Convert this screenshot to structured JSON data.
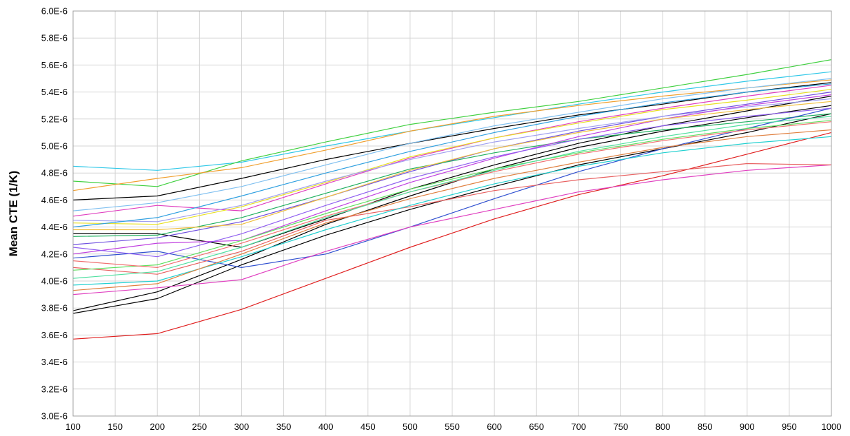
{
  "chart_data": {
    "type": "line",
    "title": "",
    "xlabel": "",
    "ylabel": "Mean CTE (1/K)",
    "xlim": [
      100,
      1000
    ],
    "ylim": [
      3e-06,
      6e-06
    ],
    "grid": true,
    "legend": "none",
    "x_ticks": [
      "100",
      "150",
      "200",
      "250",
      "300",
      "350",
      "400",
      "450",
      "500",
      "550",
      "600",
      "650",
      "700",
      "750",
      "800",
      "850",
      "900",
      "950",
      "1000"
    ],
    "y_ticks": [
      "3.0E-6",
      "3.2E-6",
      "3.4E-6",
      "3.6E-6",
      "3.8E-6",
      "4.0E-6",
      "4.2E-6",
      "4.4E-6",
      "4.6E-6",
      "4.8E-6",
      "5.0E-6",
      "5.2E-6",
      "5.4E-6",
      "5.6E-6",
      "5.8E-6",
      "6.0E-6"
    ],
    "x": [
      100,
      200,
      300,
      400,
      500,
      600,
      700,
      800,
      900,
      1000
    ],
    "series": [
      {
        "color": "#e02020",
        "values": [
          3.57e-06,
          3.61e-06,
          3.79e-06,
          4.02e-06,
          4.25e-06,
          4.46e-06,
          4.64e-06,
          4.78e-06,
          4.94e-06,
          5.1e-06
        ]
      },
      {
        "color": "#000000",
        "values": [
          3.76e-06,
          3.87e-06,
          4.12e-06,
          4.34e-06,
          4.53e-06,
          4.7e-06,
          4.86e-06,
          4.98e-06,
          5.1e-06,
          5.24e-06
        ]
      },
      {
        "color": "#000000",
        "values": [
          3.78e-06,
          3.92e-06,
          4.16e-06,
          4.42e-06,
          4.63e-06,
          4.83e-06,
          4.99e-06,
          5.11e-06,
          5.21e-06,
          5.3e-06
        ]
      },
      {
        "color": "#000000",
        "values": [
          4.6e-06,
          4.63e-06,
          4.76e-06,
          4.9e-06,
          5.02e-06,
          5.13e-06,
          5.23e-06,
          5.31e-06,
          5.4e-06,
          5.47e-06
        ]
      },
      {
        "color": "#000000",
        "values": [
          4.35e-06,
          4.35e-06,
          4.25e-06,
          4.46e-06,
          4.68e-06,
          4.86e-06,
          5.02e-06,
          5.15e-06,
          5.26e-06,
          5.37e-06
        ]
      },
      {
        "color": "#30c8e8",
        "values": [
          4.85e-06,
          4.82e-06,
          4.88e-06,
          5e-06,
          5.11e-06,
          5.21e-06,
          5.31e-06,
          5.4e-06,
          5.48e-06,
          5.55e-06
        ]
      },
      {
        "color": "#40d040",
        "values": [
          4.74e-06,
          4.7e-06,
          4.89e-06,
          5.03e-06,
          5.16e-06,
          5.25e-06,
          5.33e-06,
          5.43e-06,
          5.53e-06,
          5.64e-06
        ]
      },
      {
        "color": "#f0a030",
        "values": [
          4.67e-06,
          4.76e-06,
          4.84e-06,
          4.97e-06,
          5.11e-06,
          5.22e-06,
          5.3e-06,
          5.37e-06,
          5.43e-06,
          5.49e-06
        ]
      },
      {
        "color": "#e040c0",
        "values": [
          4.48e-06,
          4.56e-06,
          4.52e-06,
          4.72e-06,
          4.91e-06,
          5.06e-06,
          5.18e-06,
          5.28e-06,
          5.37e-06,
          5.45e-06
        ]
      },
      {
        "color": "#7050e0",
        "values": [
          4.27e-06,
          4.32e-06,
          4.44e-06,
          4.62e-06,
          4.81e-06,
          4.98e-06,
          5.11e-06,
          5.22e-06,
          5.31e-06,
          5.4e-06
        ]
      },
      {
        "color": "#e8e020",
        "values": [
          4.43e-06,
          4.42e-06,
          4.55e-06,
          4.73e-06,
          4.92e-06,
          5.06e-06,
          5.17e-06,
          5.27e-06,
          5.34e-06,
          5.42e-06
        ]
      },
      {
        "color": "#20b060",
        "values": [
          4.33e-06,
          4.34e-06,
          4.47e-06,
          4.65e-06,
          4.83e-06,
          4.95e-06,
          5.05e-06,
          5.12e-06,
          5.18e-06,
          5.24e-06
        ]
      },
      {
        "color": "#a0a0f0",
        "values": [
          4.45e-06,
          4.44e-06,
          4.56e-06,
          4.74e-06,
          4.9e-06,
          5.03e-06,
          5.13e-06,
          5.22e-06,
          5.29e-06,
          5.35e-06
        ]
      },
      {
        "color": "#c040e0",
        "values": [
          4.2e-06,
          4.28e-06,
          4.3e-06,
          4.52e-06,
          4.73e-06,
          4.91e-06,
          5.07e-06,
          5.2e-06,
          5.3e-06,
          5.38e-06
        ]
      },
      {
        "color": "#3050d0",
        "values": [
          4.17e-06,
          4.22e-06,
          4.1e-06,
          4.2e-06,
          4.4e-06,
          4.61e-06,
          4.81e-06,
          4.98e-06,
          5.13e-06,
          5.28e-06
        ]
      },
      {
        "color": "#e040c0",
        "values": [
          3.9e-06,
          3.95e-06,
          4.01e-06,
          4.22e-06,
          4.4e-06,
          4.53e-06,
          4.66e-06,
          4.75e-06,
          4.82e-06,
          4.86e-06
        ]
      },
      {
        "color": "#e86060",
        "values": [
          4.1e-06,
          4.05e-06,
          4.22e-06,
          4.45e-06,
          4.55e-06,
          4.67e-06,
          4.75e-06,
          4.81e-06,
          4.87e-06,
          4.86e-06
        ]
      },
      {
        "color": "#20d0d0",
        "values": [
          3.97e-06,
          4e-06,
          4.18e-06,
          4.38e-06,
          4.56e-06,
          4.72e-06,
          4.85e-06,
          4.95e-06,
          5.02e-06,
          5.07e-06
        ]
      },
      {
        "color": "#60e060",
        "values": [
          4.08e-06,
          4.12e-06,
          4.3e-06,
          4.5e-06,
          4.68e-06,
          4.83e-06,
          4.95e-06,
          5.05e-06,
          5.13e-06,
          5.19e-06
        ]
      },
      {
        "color": "#f07070",
        "values": [
          4.15e-06,
          4.1e-06,
          4.28e-06,
          4.48e-06,
          4.66e-06,
          4.81e-06,
          4.94e-06,
          5.04e-06,
          5.12e-06,
          5.18e-06
        ]
      },
      {
        "color": "#80c0f0",
        "values": [
          4.52e-06,
          4.58e-06,
          4.7e-06,
          4.86e-06,
          5.02e-06,
          5.15e-06,
          5.25e-06,
          5.35e-06,
          5.43e-06,
          5.5e-06
        ]
      },
      {
        "color": "#f0c040",
        "values": [
          4.38e-06,
          4.38e-06,
          4.42e-06,
          4.62e-06,
          4.82e-06,
          4.98e-06,
          5.1e-06,
          5.2e-06,
          5.27e-06,
          5.33e-06
        ]
      },
      {
        "color": "#9060f0",
        "values": [
          4.25e-06,
          4.18e-06,
          4.35e-06,
          4.56e-06,
          4.76e-06,
          4.92e-06,
          5.05e-06,
          5.15e-06,
          5.22e-06,
          5.28e-06
        ]
      },
      {
        "color": "#50e0a0",
        "values": [
          4.02e-06,
          4.07e-06,
          4.25e-06,
          4.47e-06,
          4.66e-06,
          4.82e-06,
          4.96e-06,
          5.07e-06,
          5.16e-06,
          5.22e-06
        ]
      },
      {
        "color": "#e08040",
        "values": [
          3.93e-06,
          3.98e-06,
          4.2e-06,
          4.43e-06,
          4.61e-06,
          4.76e-06,
          4.88e-06,
          4.99e-06,
          5.07e-06,
          5.12e-06
        ]
      },
      {
        "color": "#30a0e0",
        "values": [
          4.4e-06,
          4.47e-06,
          4.63e-06,
          4.8e-06,
          4.96e-06,
          5.1e-06,
          5.22e-06,
          5.32e-06,
          5.4e-06,
          5.46e-06
        ]
      }
    ]
  }
}
